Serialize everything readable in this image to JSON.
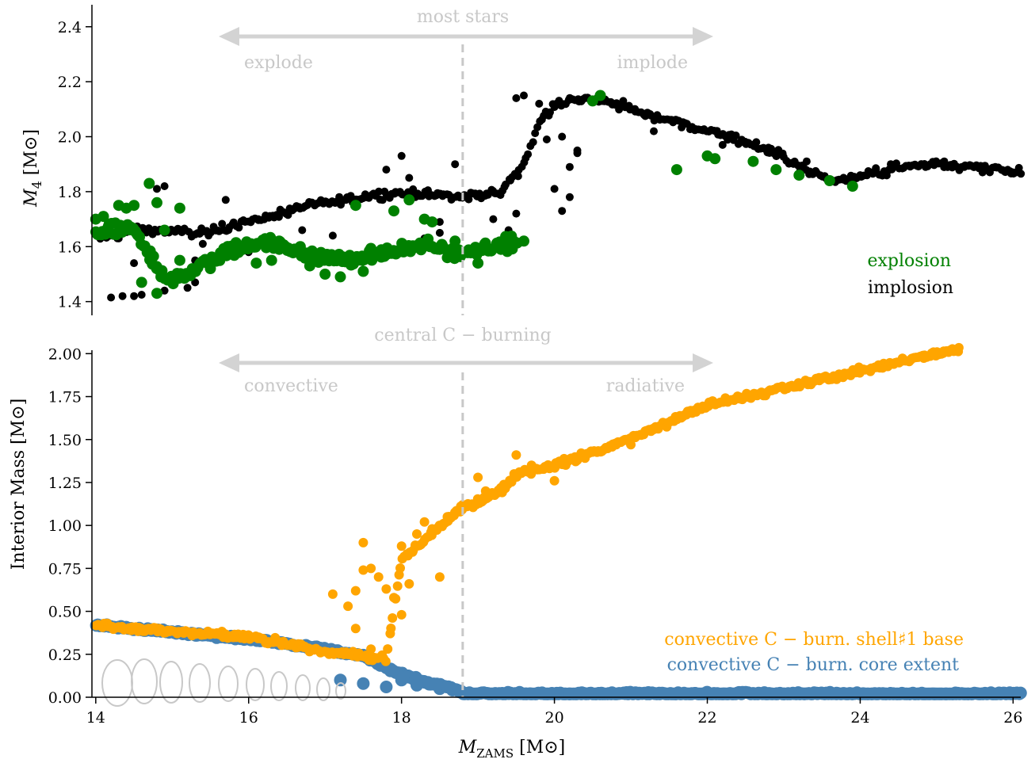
{
  "figure": {
    "xlabel": "M_ZAMS [M⊙]"
  },
  "chart_data": [
    {
      "id": "top",
      "type": "scatter",
      "title": "",
      "ylabel": "M_4 [M⊙]",
      "xlim": [
        13.95,
        26.1
      ],
      "ylim": [
        1.35,
        2.48
      ],
      "yticks": [
        1.4,
        1.6,
        1.8,
        2.0,
        2.2,
        2.4
      ],
      "ytick_labels": [
        "1.4",
        "1.6",
        "1.8",
        "2.0",
        "2.2",
        "2.4"
      ],
      "divider_x": 18.8,
      "annotations": {
        "header": "most stars",
        "left": "explode",
        "right": "implode"
      },
      "legend": [
        {
          "label": "explosion",
          "color": "#008000"
        },
        {
          "label": "implosion",
          "color": "#000000"
        }
      ],
      "series": [
        {
          "label": "implosion",
          "color": "#000000",
          "marker_size": 5,
          "curve": [
            [
              14.0,
              1.63
            ],
            [
              14.6,
              1.66
            ],
            [
              15.4,
              1.65
            ],
            [
              16.4,
              1.72
            ],
            [
              17.2,
              1.77
            ],
            [
              18.0,
              1.8
            ],
            [
              18.8,
              1.78
            ],
            [
              19.3,
              1.8
            ],
            [
              19.6,
              1.9
            ],
            [
              19.8,
              2.05
            ],
            [
              20.0,
              2.12
            ],
            [
              20.5,
              2.14
            ],
            [
              21.0,
              2.1
            ],
            [
              21.6,
              2.05
            ],
            [
              22.3,
              2.0
            ],
            [
              22.9,
              1.94
            ],
            [
              23.4,
              1.86
            ],
            [
              23.8,
              1.84
            ],
            [
              24.2,
              1.87
            ],
            [
              24.8,
              1.9
            ],
            [
              25.4,
              1.89
            ],
            [
              26.1,
              1.87
            ]
          ],
          "points": [
            [
              14.2,
              1.415
            ],
            [
              14.35,
              1.42
            ],
            [
              14.5,
              1.42
            ],
            [
              14.6,
              1.425
            ],
            [
              14.9,
              1.44
            ],
            [
              14.5,
              1.54
            ],
            [
              14.3,
              1.63
            ],
            [
              15.2,
              1.45
            ],
            [
              15.3,
              1.47
            ],
            [
              15.3,
              1.55
            ],
            [
              15.4,
              1.61
            ],
            [
              14.8,
              1.81
            ],
            [
              14.9,
              1.82
            ],
            [
              15.7,
              1.77
            ],
            [
              16.0,
              1.58
            ],
            [
              16.7,
              1.66
            ],
            [
              17.1,
              1.64
            ],
            [
              17.6,
              1.57
            ],
            [
              17.6,
              1.59
            ],
            [
              17.8,
              1.88
            ],
            [
              18.0,
              1.93
            ],
            [
              18.1,
              1.85
            ],
            [
              18.3,
              1.63
            ],
            [
              18.5,
              1.65
            ],
            [
              18.5,
              1.69
            ],
            [
              18.7,
              1.9
            ],
            [
              19.0,
              1.79
            ],
            [
              19.2,
              1.7
            ],
            [
              19.4,
              1.66
            ],
            [
              19.5,
              1.72
            ],
            [
              19.5,
              2.14
            ],
            [
              19.6,
              2.15
            ],
            [
              19.8,
              2.12
            ],
            [
              20.0,
              1.81
            ],
            [
              20.1,
              1.73
            ],
            [
              20.2,
              1.78
            ],
            [
              20.2,
              1.89
            ],
            [
              20.3,
              1.94
            ],
            [
              19.9,
              1.99
            ],
            [
              20.1,
              2.0
            ],
            [
              20.3,
              1.95
            ],
            [
              20.6,
              2.15
            ],
            [
              20.9,
              2.13
            ],
            [
              21.3,
              2.02
            ],
            [
              21.6,
              2.06
            ],
            [
              22.2,
              1.97
            ],
            [
              22.5,
              1.98
            ],
            [
              22.8,
              1.96
            ],
            [
              23.3,
              1.91
            ],
            [
              24.0,
              1.86
            ],
            [
              24.4,
              1.9
            ],
            [
              25.1,
              1.91
            ],
            [
              25.6,
              1.87
            ],
            [
              26.0,
              1.87
            ]
          ]
        },
        {
          "label": "explosion",
          "color": "#008000",
          "marker_size": 7,
          "curve": [
            [
              14.0,
              1.65
            ],
            [
              14.5,
              1.67
            ],
            [
              14.9,
              1.47
            ],
            [
              15.3,
              1.52
            ],
            [
              15.7,
              1.58
            ],
            [
              16.2,
              1.62
            ],
            [
              16.5,
              1.6
            ],
            [
              16.8,
              1.56
            ],
            [
              17.3,
              1.55
            ],
            [
              17.8,
              1.58
            ],
            [
              18.3,
              1.6
            ],
            [
              18.8,
              1.58
            ],
            [
              19.2,
              1.6
            ],
            [
              19.5,
              1.62
            ]
          ],
          "points": [
            [
              14.0,
              1.7
            ],
            [
              14.1,
              1.71
            ],
            [
              14.3,
              1.75
            ],
            [
              14.5,
              1.75
            ],
            [
              14.4,
              1.74
            ],
            [
              14.7,
              1.83
            ],
            [
              14.8,
              1.76
            ],
            [
              15.1,
              1.74
            ],
            [
              14.9,
              1.66
            ],
            [
              15.1,
              1.55
            ],
            [
              14.6,
              1.47
            ],
            [
              14.8,
              1.43
            ],
            [
              15.5,
              1.52
            ],
            [
              16.1,
              1.54
            ],
            [
              16.3,
              1.55
            ],
            [
              16.4,
              1.59
            ],
            [
              16.4,
              1.62
            ],
            [
              16.8,
              1.53
            ],
            [
              17.0,
              1.5
            ],
            [
              17.2,
              1.49
            ],
            [
              17.5,
              1.51
            ],
            [
              17.4,
              1.75
            ],
            [
              17.9,
              1.73
            ],
            [
              18.1,
              1.77
            ],
            [
              18.3,
              1.7
            ],
            [
              18.4,
              1.69
            ],
            [
              18.6,
              1.56
            ],
            [
              18.7,
              1.62
            ],
            [
              19.0,
              1.54
            ],
            [
              19.3,
              1.59
            ],
            [
              19.6,
              1.62
            ],
            [
              20.5,
              2.13
            ],
            [
              20.6,
              2.15
            ],
            [
              21.6,
              1.88
            ],
            [
              22.0,
              1.93
            ],
            [
              22.1,
              1.92
            ],
            [
              22.6,
              1.91
            ],
            [
              22.9,
              1.88
            ],
            [
              23.2,
              1.86
            ],
            [
              23.6,
              1.84
            ],
            [
              23.9,
              1.82
            ]
          ]
        }
      ]
    },
    {
      "id": "bottom",
      "type": "scatter",
      "title": "",
      "ylabel": "Interior Mass [M⊙]",
      "xlim": [
        13.95,
        26.1
      ],
      "ylim": [
        0,
        2.02
      ],
      "yticks": [
        0.0,
        0.25,
        0.5,
        0.75,
        1.0,
        1.25,
        1.5,
        1.75,
        2.0
      ],
      "ytick_labels": [
        "0.00",
        "0.25",
        "0.50",
        "0.75",
        "1.00",
        "1.25",
        "1.50",
        "1.75",
        "2.00"
      ],
      "xticks": [
        14,
        16,
        18,
        20,
        22,
        24,
        26
      ],
      "xtick_labels": [
        "14",
        "16",
        "18",
        "20",
        "22",
        "24",
        "26"
      ],
      "divider_x": 18.8,
      "annotations": {
        "header": "central C − burning",
        "left": "convective",
        "right": "radiative"
      },
      "legend": [
        {
          "label": "convective C − burn. shell♯1 base",
          "color": "#FFA500"
        },
        {
          "label": "convective C − burn. core extent",
          "color": "#4682B4"
        }
      ],
      "series": [
        {
          "label": "convective C − burn. core extent",
          "color": "#4682B4",
          "marker_size": 8,
          "curve": [
            [
              14.0,
              0.42
            ],
            [
              15.0,
              0.38
            ],
            [
              16.0,
              0.34
            ],
            [
              17.0,
              0.28
            ],
            [
              17.5,
              0.24
            ],
            [
              17.9,
              0.15
            ],
            [
              18.3,
              0.09
            ],
            [
              18.75,
              0.04
            ],
            [
              18.8,
              0.02
            ],
            [
              26.1,
              0.02
            ]
          ],
          "points": [
            [
              17.2,
              0.1
            ],
            [
              17.5,
              0.08
            ],
            [
              17.8,
              0.06
            ],
            [
              18.0,
              0.1
            ],
            [
              18.2,
              0.07
            ],
            [
              18.5,
              0.05
            ],
            [
              18.6,
              0.06
            ]
          ]
        },
        {
          "label": "convective C − burn. shell♯1 base",
          "color": "#FFA500",
          "marker_size": 6,
          "curve": [
            [
              14.0,
              0.42
            ],
            [
              15.0,
              0.38
            ],
            [
              16.0,
              0.35
            ],
            [
              17.0,
              0.27
            ],
            [
              17.8,
              0.22
            ],
            [
              18.0,
              0.8
            ],
            [
              18.4,
              0.95
            ],
            [
              18.8,
              1.1
            ],
            [
              19.3,
              1.2
            ],
            [
              19.5,
              1.3
            ],
            [
              20.0,
              1.35
            ],
            [
              21.0,
              1.5
            ],
            [
              22.0,
              1.7
            ],
            [
              23.0,
              1.8
            ],
            [
              24.0,
              1.9
            ],
            [
              25.0,
              2.0
            ],
            [
              25.3,
              2.02
            ]
          ],
          "points": [
            [
              17.1,
              0.6
            ],
            [
              17.3,
              0.53
            ],
            [
              17.4,
              0.62
            ],
            [
              17.4,
              0.4
            ],
            [
              17.5,
              0.74
            ],
            [
              17.5,
              0.9
            ],
            [
              17.6,
              0.75
            ],
            [
              17.6,
              0.28
            ],
            [
              17.7,
              0.7
            ],
            [
              17.8,
              0.63
            ],
            [
              17.9,
              0.58
            ],
            [
              18.0,
              0.48
            ],
            [
              18.1,
              0.66
            ],
            [
              18.0,
              0.88
            ],
            [
              18.2,
              0.95
            ],
            [
              18.3,
              1.02
            ],
            [
              18.4,
              0.98
            ],
            [
              18.5,
              0.7
            ],
            [
              18.6,
              1.05
            ],
            [
              18.7,
              1.07
            ],
            [
              18.8,
              1.12
            ],
            [
              19.0,
              1.28
            ],
            [
              19.1,
              1.2
            ],
            [
              19.3,
              1.22
            ],
            [
              19.5,
              1.41
            ],
            [
              19.7,
              1.35
            ],
            [
              20.0,
              1.26
            ],
            [
              20.3,
              1.38
            ],
            [
              21.0,
              1.47
            ]
          ]
        }
      ]
    }
  ]
}
